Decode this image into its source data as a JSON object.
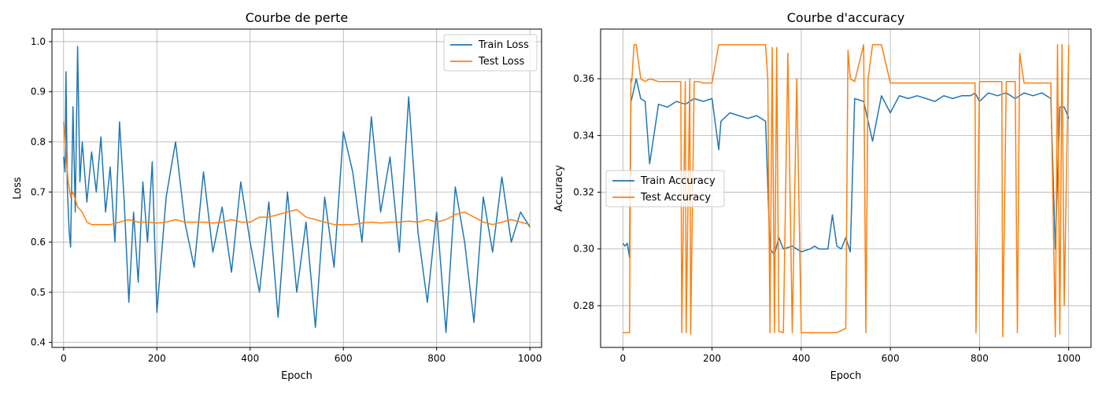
{
  "chart_data": [
    {
      "type": "line",
      "title": "Courbe de perte",
      "xlabel": "Epoch",
      "ylabel": "Loss",
      "xlim": [
        -25,
        1025
      ],
      "ylim": [
        0.39,
        1.025
      ],
      "xticks": [
        0,
        200,
        400,
        600,
        800,
        1000
      ],
      "yticks": [
        0.4,
        0.5,
        0.6,
        0.7,
        0.8,
        0.9,
        1.0
      ],
      "grid": true,
      "legend_position": "top-right",
      "series": [
        {
          "name": "Train Loss",
          "color": "#1f77b4",
          "x": [
            0,
            3,
            5,
            8,
            12,
            15,
            20,
            25,
            30,
            35,
            40,
            50,
            60,
            70,
            80,
            90,
            100,
            110,
            120,
            130,
            140,
            150,
            160,
            170,
            180,
            190,
            200,
            220,
            240,
            260,
            280,
            300,
            320,
            340,
            360,
            380,
            400,
            420,
            440,
            460,
            480,
            500,
            520,
            540,
            560,
            580,
            600,
            620,
            640,
            660,
            680,
            700,
            720,
            740,
            760,
            780,
            800,
            820,
            840,
            860,
            880,
            900,
            920,
            940,
            960,
            980,
            1000
          ],
          "y": [
            0.77,
            0.74,
            0.94,
            0.71,
            0.62,
            0.59,
            0.87,
            0.66,
            0.99,
            0.72,
            0.8,
            0.68,
            0.78,
            0.7,
            0.81,
            0.66,
            0.75,
            0.6,
            0.84,
            0.68,
            0.48,
            0.66,
            0.52,
            0.72,
            0.6,
            0.76,
            0.46,
            0.69,
            0.8,
            0.64,
            0.55,
            0.74,
            0.58,
            0.67,
            0.54,
            0.72,
            0.6,
            0.5,
            0.68,
            0.45,
            0.7,
            0.5,
            0.64,
            0.43,
            0.69,
            0.55,
            0.82,
            0.74,
            0.6,
            0.85,
            0.66,
            0.77,
            0.58,
            0.89,
            0.62,
            0.48,
            0.66,
            0.42,
            0.71,
            0.6,
            0.44,
            0.69,
            0.58,
            0.73,
            0.6,
            0.66,
            0.63
          ]
        },
        {
          "name": "Test Loss",
          "color": "#ff7f0e",
          "x": [
            0,
            5,
            10,
            15,
            20,
            30,
            40,
            50,
            60,
            80,
            100,
            120,
            140,
            160,
            180,
            200,
            220,
            240,
            260,
            280,
            300,
            320,
            340,
            360,
            380,
            400,
            420,
            440,
            460,
            480,
            500,
            520,
            540,
            560,
            580,
            600,
            620,
            640,
            660,
            680,
            700,
            720,
            740,
            760,
            780,
            800,
            820,
            840,
            860,
            880,
            900,
            920,
            940,
            960,
            980,
            1000
          ],
          "y": [
            0.84,
            0.77,
            0.72,
            0.69,
            0.7,
            0.67,
            0.66,
            0.64,
            0.635,
            0.635,
            0.635,
            0.64,
            0.645,
            0.64,
            0.64,
            0.638,
            0.64,
            0.645,
            0.64,
            0.64,
            0.64,
            0.638,
            0.64,
            0.645,
            0.64,
            0.64,
            0.65,
            0.65,
            0.655,
            0.66,
            0.665,
            0.65,
            0.645,
            0.64,
            0.635,
            0.635,
            0.635,
            0.638,
            0.64,
            0.638,
            0.64,
            0.64,
            0.642,
            0.64,
            0.645,
            0.64,
            0.645,
            0.655,
            0.66,
            0.65,
            0.64,
            0.635,
            0.64,
            0.645,
            0.64,
            0.635
          ]
        }
      ]
    },
    {
      "type": "line",
      "title": "Courbe d'accuracy",
      "xlabel": "Epoch",
      "ylabel": "Accuracy",
      "xlim": [
        -50,
        1050
      ],
      "ylim": [
        0.2653,
        0.3775
      ],
      "xticks": [
        0,
        200,
        400,
        600,
        800,
        1000
      ],
      "yticks": [
        0.28,
        0.3,
        0.32,
        0.34,
        0.36
      ],
      "grid": true,
      "legend_position": "center-left",
      "series": [
        {
          "name": "Train Accuracy",
          "color": "#1f77b4",
          "x": [
            0,
            5,
            10,
            15,
            18,
            20,
            30,
            40,
            50,
            60,
            80,
            100,
            120,
            140,
            160,
            180,
            200,
            215,
            220,
            240,
            260,
            280,
            300,
            320,
            330,
            340,
            350,
            360,
            380,
            400,
            420,
            430,
            440,
            460,
            470,
            480,
            490,
            500,
            510,
            520,
            540,
            560,
            580,
            600,
            620,
            640,
            660,
            680,
            700,
            720,
            740,
            760,
            780,
            790,
            800,
            820,
            840,
            860,
            880,
            900,
            920,
            940,
            960,
            970,
            980,
            990,
            1000
          ],
          "y": [
            0.302,
            0.301,
            0.302,
            0.297,
            0.352,
            0.353,
            0.36,
            0.353,
            0.352,
            0.33,
            0.351,
            0.35,
            0.352,
            0.351,
            0.353,
            0.352,
            0.353,
            0.335,
            0.345,
            0.348,
            0.347,
            0.346,
            0.347,
            0.345,
            0.3,
            0.298,
            0.304,
            0.3,
            0.301,
            0.299,
            0.3,
            0.301,
            0.3,
            0.3,
            0.312,
            0.301,
            0.3,
            0.304,
            0.299,
            0.353,
            0.352,
            0.338,
            0.354,
            0.348,
            0.354,
            0.353,
            0.354,
            0.353,
            0.352,
            0.354,
            0.353,
            0.354,
            0.354,
            0.355,
            0.352,
            0.355,
            0.354,
            0.355,
            0.353,
            0.355,
            0.354,
            0.355,
            0.353,
            0.3,
            0.35,
            0.35,
            0.346
          ]
        },
        {
          "name": "Test Accuracy",
          "color": "#ff7f0e",
          "x": [
            0,
            10,
            15,
            18,
            20,
            25,
            30,
            40,
            50,
            60,
            80,
            100,
            120,
            130,
            132,
            140,
            142,
            150,
            152,
            160,
            162,
            170,
            180,
            200,
            215,
            220,
            240,
            260,
            280,
            300,
            320,
            325,
            330,
            335,
            340,
            345,
            350,
            360,
            370,
            380,
            390,
            400,
            420,
            430,
            440,
            460,
            480,
            500,
            505,
            510,
            520,
            540,
            545,
            550,
            560,
            580,
            600,
            620,
            640,
            660,
            680,
            700,
            720,
            740,
            760,
            780,
            790,
            792,
            800,
            820,
            840,
            850,
            852,
            860,
            880,
            885,
            890,
            900,
            920,
            940,
            960,
            970,
            975,
            980,
            985,
            990,
            1000
          ],
          "y": [
            0.2705,
            0.2705,
            0.2705,
            0.36,
            0.359,
            0.372,
            0.372,
            0.36,
            0.359,
            0.36,
            0.359,
            0.359,
            0.359,
            0.359,
            0.2705,
            0.359,
            0.2705,
            0.36,
            0.27,
            0.359,
            0.359,
            0.359,
            0.3585,
            0.3585,
            0.372,
            0.372,
            0.372,
            0.372,
            0.372,
            0.372,
            0.372,
            0.36,
            0.2705,
            0.371,
            0.2705,
            0.371,
            0.271,
            0.2705,
            0.369,
            0.2705,
            0.36,
            0.2705,
            0.2705,
            0.2705,
            0.2705,
            0.2705,
            0.2705,
            0.272,
            0.37,
            0.36,
            0.359,
            0.372,
            0.2705,
            0.36,
            0.372,
            0.372,
            0.3585,
            0.3585,
            0.3585,
            0.3585,
            0.3585,
            0.3585,
            0.3585,
            0.3585,
            0.3585,
            0.3585,
            0.3585,
            0.2705,
            0.359,
            0.359,
            0.359,
            0.359,
            0.269,
            0.359,
            0.359,
            0.2705,
            0.369,
            0.3585,
            0.3585,
            0.3585,
            0.3585,
            0.269,
            0.372,
            0.27,
            0.372,
            0.28,
            0.372
          ]
        }
      ]
    }
  ]
}
